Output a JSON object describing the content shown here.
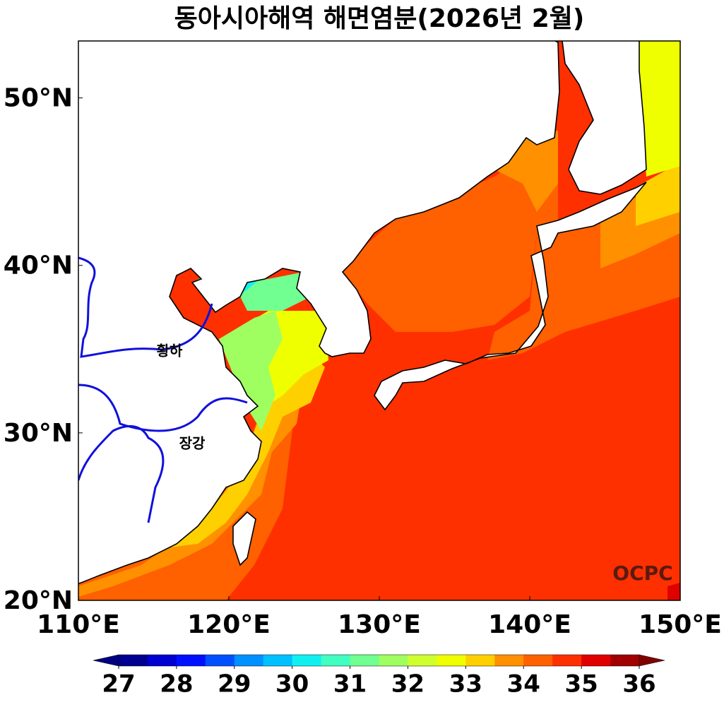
{
  "chart_data": {
    "type": "map",
    "title": "동아시아해역 해면염분(2026년 2월)",
    "xlim": [
      110,
      150
    ],
    "ylim": [
      20,
      53.4
    ],
    "xticks": [
      {
        "value": 110,
        "label": "110°E"
      },
      {
        "value": 120,
        "label": "120°E"
      },
      {
        "value": 130,
        "label": "130°E"
      },
      {
        "value": 140,
        "label": "140°E"
      },
      {
        "value": 150,
        "label": "150°E"
      }
    ],
    "yticks": [
      {
        "value": 20,
        "label": "20°N"
      },
      {
        "value": 30,
        "label": "30°N"
      },
      {
        "value": 40,
        "label": "40°N"
      },
      {
        "value": 50,
        "label": "50°N"
      }
    ],
    "annotations": [
      "황하",
      "장강",
      "OCPC"
    ],
    "colorbar": {
      "lim": [
        27,
        36
      ],
      "ticks": [
        27,
        28,
        29,
        30,
        31,
        32,
        33,
        34,
        35,
        36
      ],
      "under_color": "#000080",
      "over_color": "#800000",
      "colors": [
        "#000090",
        "#0000d0",
        "#0010ff",
        "#0050ff",
        "#0090ff",
        "#00c0ff",
        "#10f0f0",
        "#40ffc0",
        "#70ff90",
        "#a0ff60",
        "#d0ff30",
        "#f0ff00",
        "#ffd000",
        "#ff9000",
        "#ff6000",
        "#ff3000",
        "#e00000",
        "#a00000"
      ]
    }
  }
}
